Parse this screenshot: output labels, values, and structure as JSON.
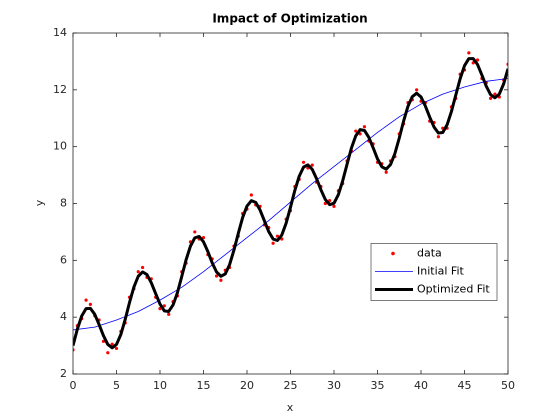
{
  "chart_data": {
    "type": "line",
    "title": "Impact of Optimization",
    "xlabel": "x",
    "ylabel": "y",
    "xlim": [
      0,
      50
    ],
    "ylim": [
      2,
      14
    ],
    "xticks": [
      0,
      5,
      10,
      15,
      20,
      25,
      30,
      35,
      40,
      45,
      50
    ],
    "yticks": [
      2,
      4,
      6,
      8,
      10,
      12,
      14
    ],
    "legend": "east",
    "x": [
      0,
      0.5,
      1,
      1.5,
      2,
      2.5,
      3,
      3.5,
      4,
      4.5,
      5,
      5.5,
      6,
      6.5,
      7,
      7.5,
      8,
      8.5,
      9,
      9.5,
      10,
      10.5,
      11,
      11.5,
      12,
      12.5,
      13,
      13.5,
      14,
      14.5,
      15,
      15.5,
      16,
      16.5,
      17,
      17.5,
      18,
      18.5,
      19,
      19.5,
      20,
      20.5,
      21,
      21.5,
      22,
      22.5,
      23,
      23.5,
      24,
      24.5,
      25,
      25.5,
      26,
      26.5,
      27,
      27.5,
      28,
      28.5,
      29,
      29.5,
      30,
      30.5,
      31,
      31.5,
      32,
      32.5,
      33,
      33.5,
      34,
      34.5,
      35,
      35.5,
      36,
      36.5,
      37,
      37.5,
      38,
      38.5,
      39,
      39.5,
      40,
      40.5,
      41,
      41.5,
      42,
      42.5,
      43,
      43.5,
      44,
      44.5,
      45,
      45.5,
      46,
      46.5,
      47,
      47.5,
      48,
      48.5,
      49,
      49.5,
      50
    ],
    "series": [
      {
        "name": "data",
        "color": "#ff0000",
        "mode": "markers",
        "values": [
          2.85,
          3.7,
          3.95,
          4.6,
          4.45,
          4.05,
          3.9,
          3.15,
          2.75,
          3.05,
          2.9,
          3.5,
          3.8,
          4.7,
          5.0,
          5.6,
          5.75,
          5.4,
          5.35,
          4.7,
          4.3,
          4.4,
          4.1,
          4.55,
          4.75,
          5.6,
          5.9,
          6.65,
          7.0,
          6.75,
          6.8,
          6.2,
          6.05,
          5.45,
          5.3,
          5.65,
          5.75,
          6.5,
          6.85,
          7.65,
          7.8,
          8.3,
          7.95,
          7.9,
          7.25,
          7.15,
          6.6,
          6.85,
          6.75,
          7.45,
          7.75,
          8.6,
          8.85,
          9.45,
          9.25,
          9.35,
          8.75,
          8.6,
          8.0,
          8.1,
          7.9,
          8.45,
          8.7,
          9.5,
          9.85,
          10.55,
          10.45,
          10.7,
          10.2,
          10.1,
          9.45,
          9.4,
          9.1,
          9.5,
          9.65,
          10.45,
          10.8,
          11.55,
          11.65,
          12.0,
          11.6,
          11.55,
          10.9,
          10.85,
          10.35,
          10.65,
          10.65,
          11.4,
          11.7,
          12.55,
          12.7,
          13.3,
          12.95,
          13.05,
          12.4,
          12.25,
          11.7,
          11.85,
          11.75,
          12.35,
          12.9
        ]
      },
      {
        "name": "Initial Fit",
        "color": "#0000ff",
        "mode": "lines",
        "line_width": 0.8,
        "x": [
          0,
          2.5,
          5,
          7.5,
          10,
          12.5,
          15,
          17.5,
          20,
          22.5,
          25,
          27.5,
          30,
          32.5,
          35,
          37.5,
          40,
          42.5,
          45,
          47.5,
          50
        ],
        "values": [
          3.55,
          3.65,
          3.9,
          4.2,
          4.6,
          5.05,
          5.6,
          6.2,
          6.8,
          7.4,
          8.05,
          8.7,
          9.3,
          9.9,
          10.5,
          11.05,
          11.5,
          11.85,
          12.1,
          12.3,
          12.4
        ]
      },
      {
        "name": "Optimized Fit",
        "color": "#000000",
        "mode": "lines",
        "line_width": 3,
        "values": [
          3.0,
          3.58,
          4.04,
          4.3,
          4.31,
          4.1,
          3.74,
          3.35,
          3.04,
          2.92,
          3.04,
          3.39,
          3.92,
          4.52,
          5.06,
          5.44,
          5.59,
          5.5,
          5.21,
          4.83,
          4.46,
          4.22,
          4.2,
          4.43,
          4.86,
          5.43,
          6.02,
          6.5,
          6.79,
          6.84,
          6.65,
          6.31,
          5.91,
          5.59,
          5.44,
          5.52,
          5.85,
          6.36,
          6.95,
          7.51,
          7.91,
          8.1,
          8.04,
          7.77,
          7.39,
          7.01,
          6.75,
          6.7,
          6.89,
          7.31,
          7.87,
          8.46,
          8.96,
          9.28,
          9.36,
          9.2,
          8.87,
          8.48,
          8.14,
          7.96,
          8.01,
          8.31,
          8.8,
          9.38,
          9.95,
          10.38,
          10.6,
          10.57,
          10.33,
          9.96,
          9.57,
          9.29,
          9.21,
          9.37,
          9.76,
          10.3,
          10.9,
          11.42,
          11.76,
          11.88,
          11.75,
          11.43,
          11.04,
          10.69,
          10.48,
          10.5,
          10.77,
          11.24,
          11.82,
          12.39,
          12.85,
          13.1,
          13.1,
          12.89,
          12.52,
          12.13,
          11.83,
          11.72,
          11.85,
          12.21,
          12.74
        ]
      }
    ]
  }
}
